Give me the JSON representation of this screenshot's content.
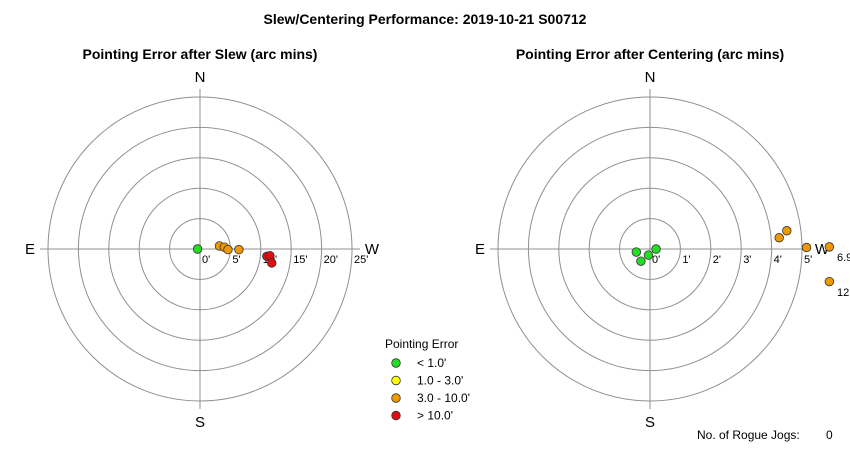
{
  "title": "Slew/Centering Performance: 2019-10-21 S00712",
  "chart_data": [
    {
      "type": "scatter",
      "subtype": "polar",
      "title": "Pointing Error after Slew (arc mins)",
      "compass": {
        "north": "N",
        "south": "S",
        "east": "E",
        "west": "W"
      },
      "rings": [
        5,
        10,
        15,
        20,
        25
      ],
      "ring_labels": [
        "0'",
        "5'",
        "10'",
        "15'",
        "20'",
        "25'"
      ],
      "rmax": 25,
      "points": [
        {
          "dx": -0.4,
          "dy": 0.0
        },
        {
          "dx": 3.2,
          "dy": 0.5
        },
        {
          "dx": 4.0,
          "dy": 0.3
        },
        {
          "dx": 4.6,
          "dy": -0.1
        },
        {
          "dx": 6.4,
          "dy": -0.1
        },
        {
          "dx": 11.0,
          "dy": -1.2
        },
        {
          "dx": 11.5,
          "dy": -1.1
        },
        {
          "dx": 11.8,
          "dy": -2.3
        }
      ]
    },
    {
      "type": "scatter",
      "subtype": "polar",
      "title": "Pointing Error after Centering (arc mins)",
      "compass": {
        "north": "N",
        "south": "S",
        "east": "E",
        "west": "W"
      },
      "rings": [
        1,
        2,
        3,
        4,
        5
      ],
      "ring_labels": [
        "0'",
        "1'",
        "2'",
        "3'",
        "4'",
        "5'"
      ],
      "rmax": 5,
      "points": [
        {
          "dx": -0.45,
          "dy": -0.1
        },
        {
          "dx": -0.3,
          "dy": -0.4
        },
        {
          "dx": -0.05,
          "dy": -0.2
        },
        {
          "dx": 0.2,
          "dy": 0.0
        },
        {
          "dx": 4.25,
          "dy": 0.37
        },
        {
          "dx": 4.5,
          "dy": 0.6
        },
        {
          "dx": 5.15,
          "dy": 0.05
        },
        {
          "dx": 5.9,
          "dy": 0.07
        },
        {
          "dx": 5.9,
          "dy": -1.07
        }
      ],
      "offscale_labels": [
        {
          "text": "6.9",
          "dx": 6.15,
          "dy": -0.4
        },
        {
          "text": "12.",
          "dx": 6.15,
          "dy": -1.55
        }
      ]
    }
  ],
  "legend": {
    "title": "Pointing Error",
    "placement": "bottom-center",
    "items": [
      {
        "label": "< 1.0'",
        "color": "#22dd22",
        "min": 0,
        "max": 1
      },
      {
        "label": "1.0 - 3.0'",
        "color": "#ffff00",
        "min": 1,
        "max": 3
      },
      {
        "label": "3.0 - 10.0'",
        "color": "#ee9900",
        "min": 3,
        "max": 10
      },
      {
        "label": "> 10.0'",
        "color": "#dd1111",
        "min": 10,
        "max": 1000
      }
    ]
  },
  "rogue_jogs": {
    "label": "No. of Rogue Jogs:",
    "value": "0"
  }
}
